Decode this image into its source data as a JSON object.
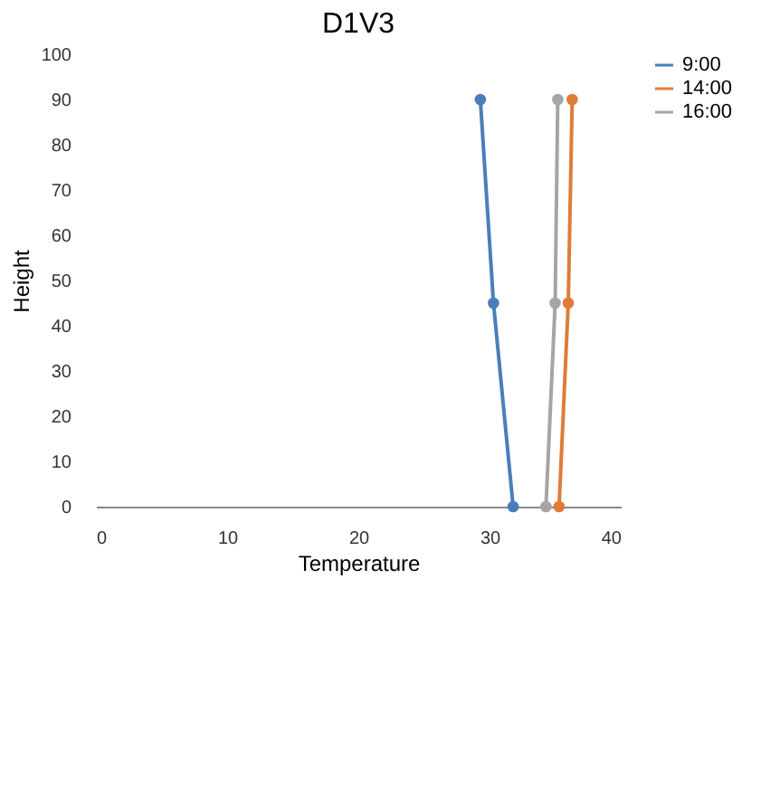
{
  "chart_data": {
    "type": "line",
    "title": "D1V3",
    "xlabel": "Temperature",
    "ylabel": "Height",
    "xlim": [
      0,
      40
    ],
    "xticks": [
      0,
      10,
      20,
      30,
      40
    ],
    "ylim": [
      0,
      100
    ],
    "yticks": [
      0,
      10,
      20,
      30,
      40,
      50,
      60,
      70,
      80,
      90,
      100
    ],
    "grid": false,
    "legend": "right",
    "marker": "circle",
    "line_style": "solid",
    "series": [
      {
        "name": "9:00",
        "color": "#4a7ebb",
        "x": [
          31.8,
          30.3,
          29.3
        ],
        "values": [
          0,
          45,
          90
        ]
      },
      {
        "name": "14:00",
        "color": "#e07b39",
        "x": [
          35.3,
          36.0,
          36.3
        ],
        "values": [
          0,
          45,
          90
        ]
      },
      {
        "name": "16:00",
        "color": "#a5a5a5",
        "x": [
          34.3,
          35.0,
          35.2
        ],
        "values": [
          0,
          45,
          90
        ]
      }
    ]
  }
}
